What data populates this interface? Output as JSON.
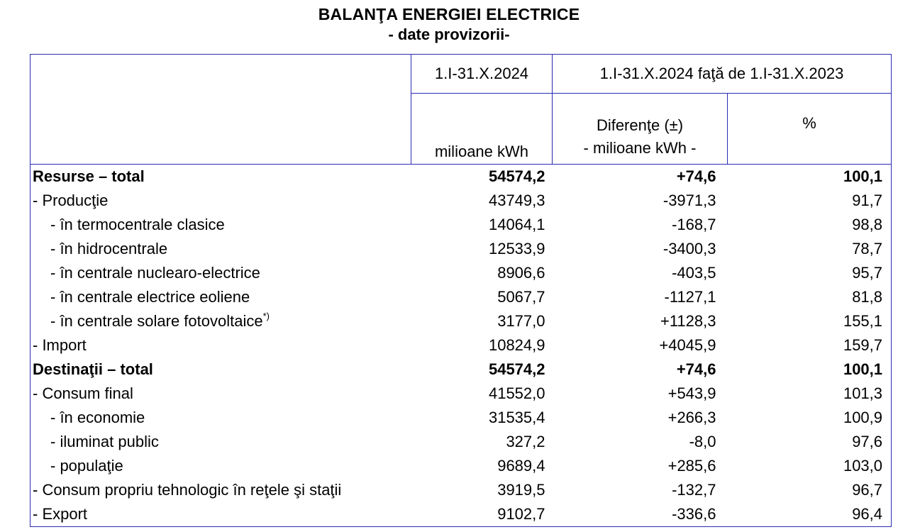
{
  "header": {
    "title": "BALANŢA ENERGIEI ELECTRICE",
    "subtitle": "- date provizorii-"
  },
  "table": {
    "col_period": "1.I-31.X.2024",
    "col_comparison": "1.I-31.X.2024 faţă de 1.I-31.X.2023",
    "unit_value": "milioane kWh",
    "diff_label": "Diferenţe (±)",
    "diff_unit": "- milioane kWh -",
    "pct_label": "%",
    "rows": [
      {
        "label": "Resurse – total",
        "value": "54574,2",
        "diff": "+74,6",
        "pct": "100,1",
        "bold": true,
        "indent": 0
      },
      {
        "label": "- Producţie",
        "value": "43749,3",
        "diff": "-3971,3",
        "pct": "91,7",
        "bold": false,
        "indent": 0
      },
      {
        "label": "- în termocentrale clasice",
        "value": "14064,1",
        "diff": "-168,7",
        "pct": "98,8",
        "bold": false,
        "indent": 1
      },
      {
        "label": "- în hidrocentrale",
        "value": "12533,9",
        "diff": "-3400,3",
        "pct": "78,7",
        "bold": false,
        "indent": 1
      },
      {
        "label": "- în centrale nuclearo-electrice",
        "value": "8906,6",
        "diff": "-403,5",
        "pct": "95,7",
        "bold": false,
        "indent": 1
      },
      {
        "label": "- în centrale electrice eoliene",
        "value": "5067,7",
        "diff": "-1127,1",
        "pct": "81,8",
        "bold": false,
        "indent": 1
      },
      {
        "label": "- în centrale solare fotovoltaice",
        "note": "*)",
        "value": "3177,0",
        "diff": "+1128,3",
        "pct": "155,1",
        "bold": false,
        "indent": 1
      },
      {
        "label": "- Import",
        "value": "10824,9",
        "diff": "+4045,9",
        "pct": "159,7",
        "bold": false,
        "indent": 0
      },
      {
        "label": "Destinaţii – total",
        "value": "54574,2",
        "diff": "+74,6",
        "pct": "100,1",
        "bold": true,
        "indent": 0
      },
      {
        "label": "- Consum final",
        "value": "41552,0",
        "diff": "+543,9",
        "pct": "101,3",
        "bold": false,
        "indent": 0
      },
      {
        "label": "- în economie",
        "value": "31535,4",
        "diff": "+266,3",
        "pct": "100,9",
        "bold": false,
        "indent": 1
      },
      {
        "label": "- iluminat public",
        "value": "327,2",
        "diff": "-8,0",
        "pct": "97,6",
        "bold": false,
        "indent": 1
      },
      {
        "label": "- populaţie",
        "value": "9689,4",
        "diff": "+285,6",
        "pct": "103,0",
        "bold": false,
        "indent": 1
      },
      {
        "label": "- Consum propriu tehnologic în reţele şi staţii",
        "value": "3919,5",
        "diff": "-132,7",
        "pct": "96,7",
        "bold": false,
        "indent": 0
      },
      {
        "label": "- Export",
        "value": "9102,7",
        "diff": "-336,6",
        "pct": "96,4",
        "bold": false,
        "indent": 0
      }
    ]
  }
}
